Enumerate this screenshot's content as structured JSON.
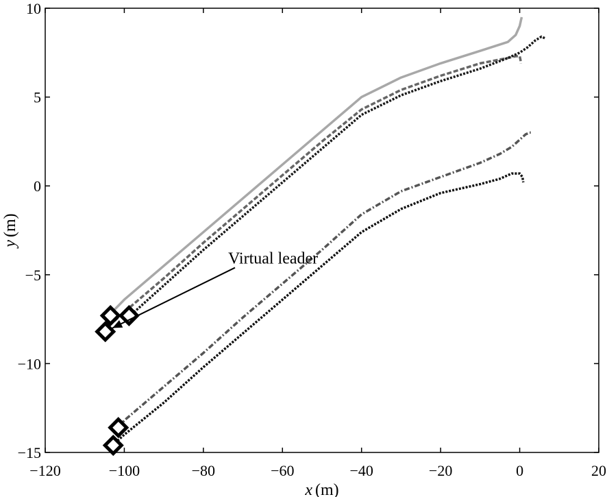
{
  "chart_data": {
    "type": "line",
    "title": "",
    "xlabel_var": "x",
    "xlabel_unit": "(m)",
    "ylabel_var": "y",
    "ylabel_unit": "(m)",
    "xlim": [
      -120,
      20
    ],
    "ylim": [
      -15,
      10
    ],
    "xticks": [
      -120,
      -100,
      -80,
      -60,
      -40,
      -20,
      0,
      20
    ],
    "yticks": [
      -15,
      -10,
      -5,
      0,
      5,
      10
    ],
    "xtick_labels": [
      "−120",
      "−100",
      "−80",
      "−60",
      "−40",
      "−20",
      "0",
      "20"
    ],
    "ytick_labels": [
      "−15",
      "−10",
      "−5",
      "0",
      "5",
      "10"
    ],
    "grid": false,
    "legend": "none",
    "series": [
      {
        "style": "solid",
        "color": "#a8a8a8",
        "x": [
          -103.5,
          -100,
          -90,
          -80,
          -70,
          -60,
          -50,
          -40,
          -30,
          -20,
          -10,
          -3,
          -1,
          0,
          0.3,
          0.5
        ],
        "y": [
          -7.2,
          -6.4,
          -4.5,
          -2.6,
          -0.7,
          1.2,
          3.1,
          5.0,
          6.1,
          6.9,
          7.6,
          8.1,
          8.5,
          9.0,
          9.3,
          9.5
        ]
      },
      {
        "style": "dashed",
        "color": "#666666",
        "x": [
          -102.5,
          -100,
          -90,
          -80,
          -70,
          -60,
          -50,
          -40,
          -30,
          -20,
          -10,
          -3,
          -1,
          0,
          0.2,
          0.3
        ],
        "y": [
          -7.6,
          -7.1,
          -5.2,
          -3.2,
          -1.3,
          0.6,
          2.5,
          4.3,
          5.4,
          6.2,
          6.9,
          7.2,
          7.3,
          7.3,
          7.1,
          6.9
        ]
      },
      {
        "style": "dotted",
        "color": "#1a1a1a",
        "x": [
          -99.5,
          -98,
          -90,
          -80,
          -70,
          -60,
          -50,
          -40,
          -30,
          -20,
          -10,
          -3,
          0,
          2,
          4,
          5.5,
          6.5
        ],
        "y": [
          -7.5,
          -7.2,
          -5.6,
          -3.6,
          -1.7,
          0.2,
          2.1,
          4.0,
          5.1,
          5.9,
          6.6,
          7.2,
          7.5,
          7.8,
          8.2,
          8.4,
          8.3
        ]
      },
      {
        "style": "dashdot",
        "color": "#555555",
        "x": [
          -101.5,
          -100,
          -90,
          -80,
          -70,
          -60,
          -50,
          -40,
          -30,
          -20,
          -10,
          -5,
          -2,
          0,
          1.5,
          2.5,
          2.8
        ],
        "y": [
          -13.6,
          -13.2,
          -11.3,
          -9.4,
          -7.4,
          -5.5,
          -3.6,
          -1.6,
          -0.3,
          0.5,
          1.3,
          1.8,
          2.2,
          2.6,
          2.9,
          3.0,
          3.0
        ]
      },
      {
        "style": "dotted",
        "color": "#111111",
        "x": [
          -103,
          -100,
          -90,
          -80,
          -70,
          -60,
          -50,
          -40,
          -30,
          -20,
          -10,
          -5,
          -2,
          0,
          0.7,
          0.9
        ],
        "y": [
          -14.6,
          -14.0,
          -12.2,
          -10.2,
          -8.3,
          -6.4,
          -4.5,
          -2.6,
          -1.3,
          -0.4,
          0.1,
          0.4,
          0.7,
          0.7,
          0.5,
          0.2
        ]
      }
    ],
    "start_markers": {
      "shape": "diamond",
      "points": [
        {
          "x": -103.5,
          "y": -7.3
        },
        {
          "x": -104.8,
          "y": -8.2
        },
        {
          "x": -98.8,
          "y": -7.3
        },
        {
          "x": -101.5,
          "y": -13.6
        },
        {
          "x": -102.8,
          "y": -14.6
        }
      ]
    },
    "annotation": {
      "text": "Virtual leader",
      "anchor": {
        "x": -72,
        "y": -4.6
      },
      "arrow_tip": {
        "x": -103,
        "y": -8.0
      }
    }
  }
}
